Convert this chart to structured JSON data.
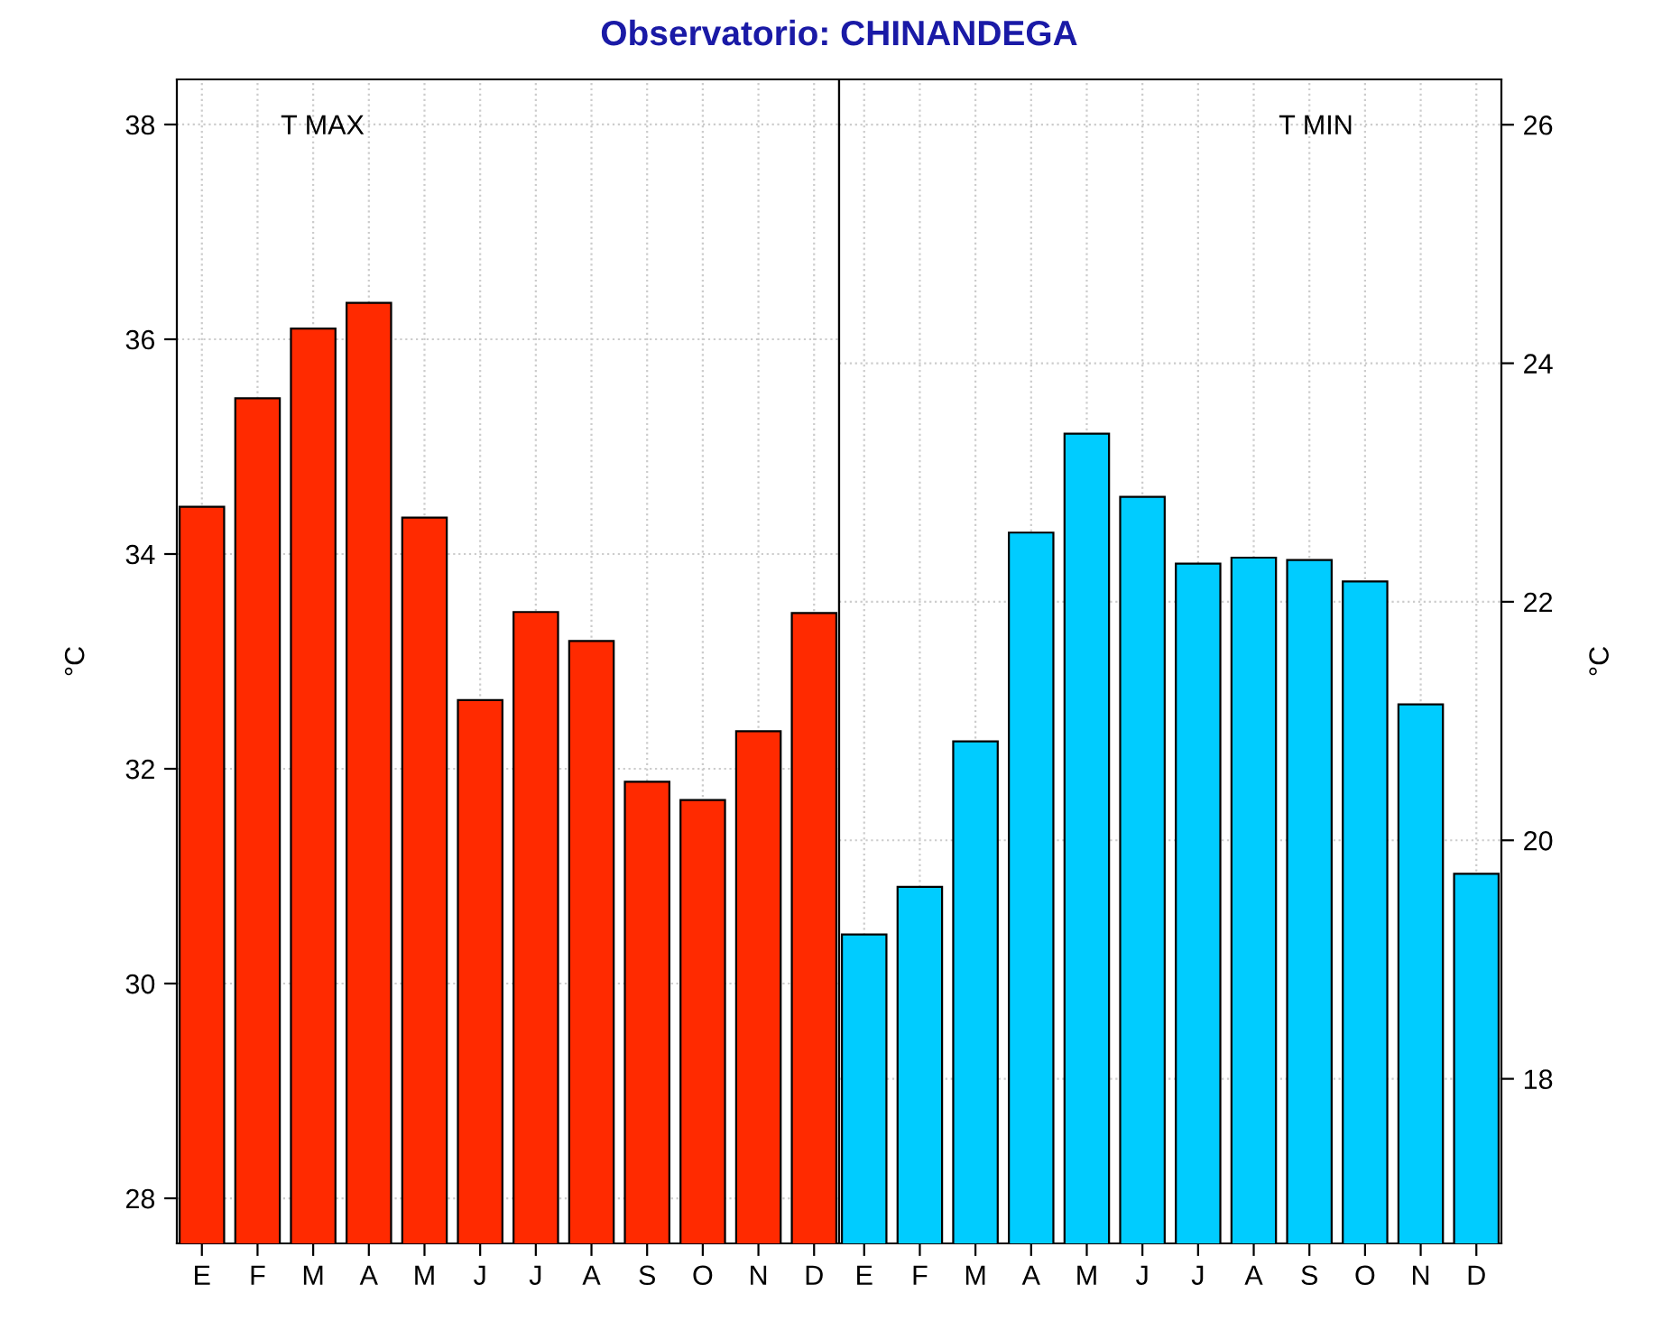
{
  "chart_data": [
    {
      "type": "bar",
      "title": "Observatorio: CHINANDEGA",
      "ylabel": "°C",
      "annotations": [
        "T MAX"
      ],
      "categories": [
        "E",
        "F",
        "M",
        "A",
        "M",
        "J",
        "J",
        "A",
        "S",
        "O",
        "N",
        "D"
      ],
      "series": [
        {
          "color": "#ff2a00",
          "values": [
            34.44,
            35.45,
            36.1,
            36.34,
            34.34,
            32.64,
            33.46,
            33.19,
            31.88,
            31.71,
            32.35,
            33.45
          ]
        }
      ],
      "ylim": [
        27.58,
        38.42
      ],
      "yticks": [
        28,
        30,
        32,
        34,
        36,
        38
      ],
      "grid": true
    },
    {
      "type": "bar",
      "y2label": "°C",
      "annotations": [
        "T MIN"
      ],
      "categories": [
        "E",
        "F",
        "M",
        "A",
        "M",
        "J",
        "J",
        "A",
        "S",
        "O",
        "N",
        "D"
      ],
      "series": [
        {
          "color": "#00ccff",
          "axis": "y2",
          "values": [
            19.21,
            19.61,
            20.83,
            22.58,
            23.41,
            22.88,
            22.32,
            22.37,
            22.35,
            22.17,
            21.14,
            19.72
          ]
        }
      ],
      "y2lim": [
        16.62,
        26.38
      ],
      "y2ticks": [
        18,
        20,
        22,
        24,
        26
      ],
      "grid": true
    }
  ]
}
